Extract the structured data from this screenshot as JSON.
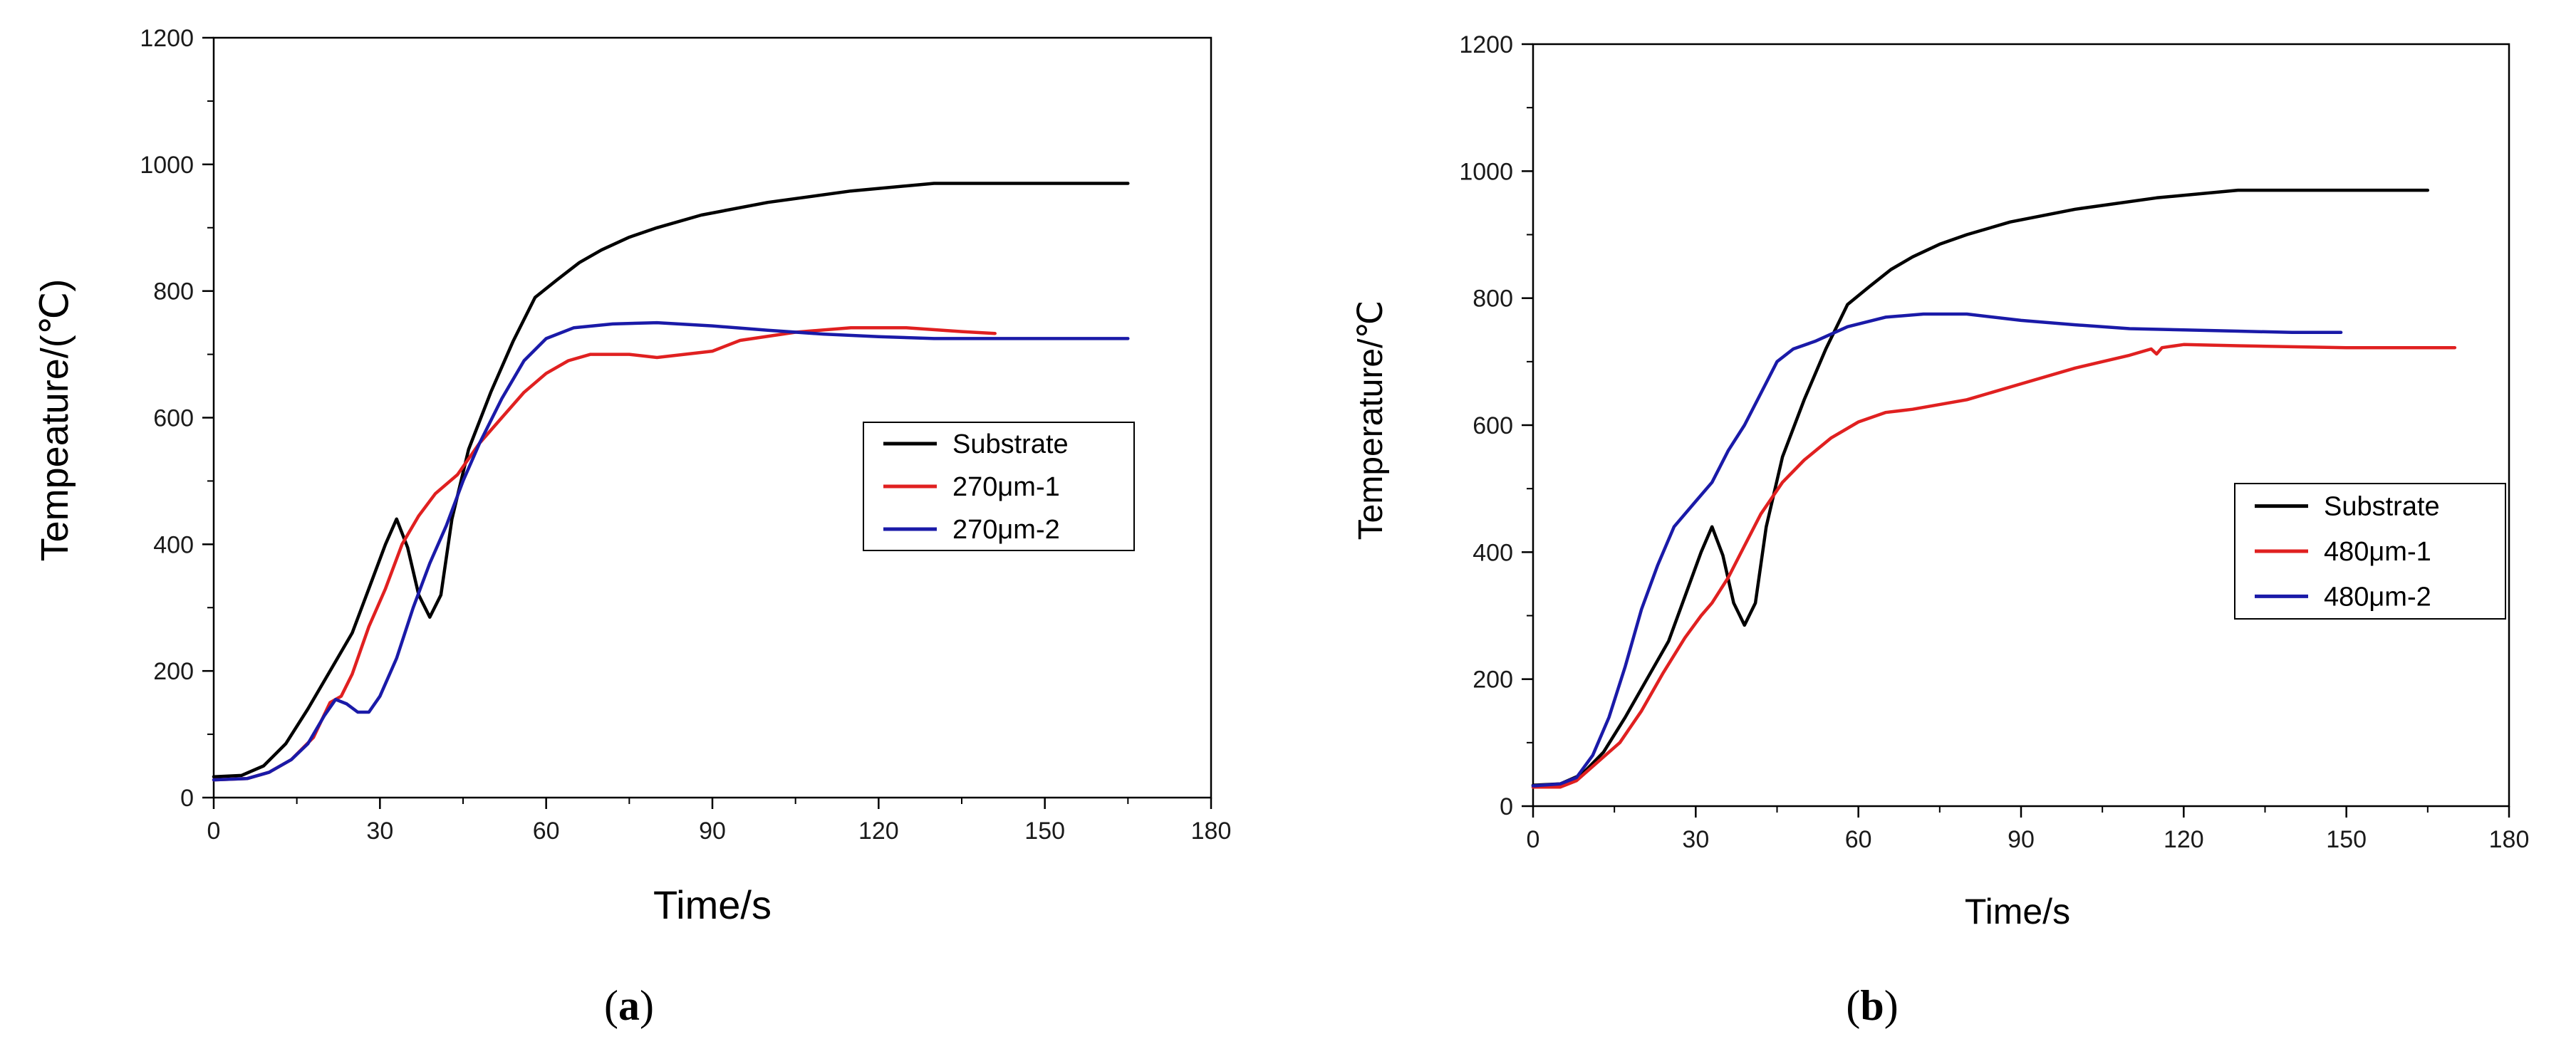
{
  "chart_data": [
    {
      "id": "a",
      "type": "line",
      "caption_letter": "a",
      "caption_open": "(",
      "caption_close": ")",
      "xlabel": "Time/s",
      "ylabel": "Tempeature/(℃)",
      "xlim": [
        0,
        180
      ],
      "ylim": [
        0,
        1200
      ],
      "xticks": [
        "0",
        "30",
        "60",
        "90",
        "120",
        "150",
        "180"
      ],
      "yticks": [
        "0",
        "200",
        "400",
        "600",
        "800",
        "1000",
        "1200"
      ],
      "grid": false,
      "legend_position": "center-right",
      "series": [
        {
          "name": "Substrate",
          "color": "#000000",
          "points": [
            [
              0,
              33
            ],
            [
              5,
              35
            ],
            [
              9,
              50
            ],
            [
              13,
              85
            ],
            [
              17,
              140
            ],
            [
              21,
              200
            ],
            [
              25,
              260
            ],
            [
              28,
              330
            ],
            [
              31,
              400
            ],
            [
              33,
              440
            ],
            [
              35,
              395
            ],
            [
              37,
              320
            ],
            [
              39,
              285
            ],
            [
              41,
              320
            ],
            [
              43,
              440
            ],
            [
              46,
              550
            ],
            [
              50,
              640
            ],
            [
              54,
              720
            ],
            [
              58,
              790
            ],
            [
              62,
              818
            ],
            [
              66,
              845
            ],
            [
              70,
              865
            ],
            [
              75,
              885
            ],
            [
              80,
              900
            ],
            [
              88,
              920
            ],
            [
              100,
              940
            ],
            [
              115,
              958
            ],
            [
              130,
              970
            ],
            [
              145,
              970
            ],
            [
              165,
              970
            ]
          ]
        },
        {
          "name": "270μm-1",
          "color": "#e02020",
          "points": [
            [
              0,
              28
            ],
            [
              6,
              30
            ],
            [
              10,
              40
            ],
            [
              14,
              60
            ],
            [
              18,
              95
            ],
            [
              21,
              150
            ],
            [
              23,
              160
            ],
            [
              25,
              195
            ],
            [
              28,
              270
            ],
            [
              31,
              330
            ],
            [
              34,
              400
            ],
            [
              37,
              445
            ],
            [
              40,
              480
            ],
            [
              44,
              510
            ],
            [
              48,
              560
            ],
            [
              52,
              600
            ],
            [
              56,
              640
            ],
            [
              60,
              670
            ],
            [
              64,
              690
            ],
            [
              68,
              700
            ],
            [
              75,
              700
            ],
            [
              80,
              695
            ],
            [
              90,
              705
            ],
            [
              95,
              722
            ],
            [
              105,
              735
            ],
            [
              115,
              742
            ],
            [
              125,
              742
            ],
            [
              135,
              736
            ],
            [
              141,
              733
            ]
          ]
        },
        {
          "name": "270μm-2",
          "color": "#1a1aa8",
          "points": [
            [
              0,
              28
            ],
            [
              6,
              30
            ],
            [
              10,
              40
            ],
            [
              14,
              60
            ],
            [
              17,
              85
            ],
            [
              20,
              130
            ],
            [
              22,
              155
            ],
            [
              24,
              148
            ],
            [
              26,
              135
            ],
            [
              28,
              135
            ],
            [
              30,
              160
            ],
            [
              33,
              220
            ],
            [
              36,
              300
            ],
            [
              39,
              370
            ],
            [
              42,
              430
            ],
            [
              45,
              500
            ],
            [
              48,
              560
            ],
            [
              52,
              630
            ],
            [
              56,
              690
            ],
            [
              60,
              725
            ],
            [
              65,
              742
            ],
            [
              72,
              748
            ],
            [
              80,
              750
            ],
            [
              90,
              745
            ],
            [
              100,
              738
            ],
            [
              110,
              732
            ],
            [
              120,
              728
            ],
            [
              130,
              725
            ],
            [
              145,
              725
            ],
            [
              165,
              725
            ]
          ]
        }
      ]
    },
    {
      "id": "b",
      "type": "line",
      "caption_letter": "b",
      "caption_open": "(",
      "caption_close": ")",
      "xlabel": "Time/s",
      "ylabel": "Temperature/℃",
      "xlim": [
        0,
        180
      ],
      "ylim": [
        0,
        1200
      ],
      "xticks": [
        "0",
        "30",
        "60",
        "90",
        "120",
        "150",
        "180"
      ],
      "yticks": [
        "0",
        "200",
        "400",
        "600",
        "800",
        "1000",
        "1200"
      ],
      "grid": false,
      "legend_position": "center-right",
      "series": [
        {
          "name": "Substrate",
          "color": "#000000",
          "points": [
            [
              0,
              33
            ],
            [
              5,
              35
            ],
            [
              9,
              50
            ],
            [
              13,
              85
            ],
            [
              17,
              140
            ],
            [
              21,
              200
            ],
            [
              25,
              260
            ],
            [
              28,
              330
            ],
            [
              31,
              400
            ],
            [
              33,
              440
            ],
            [
              35,
              395
            ],
            [
              37,
              320
            ],
            [
              39,
              285
            ],
            [
              41,
              320
            ],
            [
              43,
              440
            ],
            [
              46,
              550
            ],
            [
              50,
              640
            ],
            [
              54,
              720
            ],
            [
              58,
              790
            ],
            [
              62,
              818
            ],
            [
              66,
              845
            ],
            [
              70,
              865
            ],
            [
              75,
              885
            ],
            [
              80,
              900
            ],
            [
              88,
              920
            ],
            [
              100,
              940
            ],
            [
              115,
              958
            ],
            [
              130,
              970
            ],
            [
              145,
              970
            ],
            [
              165,
              970
            ]
          ]
        },
        {
          "name": "480μm-1",
          "color": "#e02020",
          "points": [
            [
              0,
              30
            ],
            [
              5,
              30
            ],
            [
              8,
              40
            ],
            [
              12,
              70
            ],
            [
              16,
              100
            ],
            [
              20,
              150
            ],
            [
              24,
              210
            ],
            [
              28,
              265
            ],
            [
              31,
              300
            ],
            [
              33,
              320
            ],
            [
              36,
              360
            ],
            [
              39,
              410
            ],
            [
              42,
              460
            ],
            [
              46,
              510
            ],
            [
              50,
              545
            ],
            [
              55,
              580
            ],
            [
              60,
              605
            ],
            [
              65,
              620
            ],
            [
              70,
              625
            ],
            [
              80,
              640
            ],
            [
              90,
              665
            ],
            [
              100,
              690
            ],
            [
              110,
              710
            ],
            [
              114,
              720
            ],
            [
              115,
              712
            ],
            [
              116,
              722
            ],
            [
              120,
              727
            ],
            [
              130,
              725
            ],
            [
              150,
              722
            ],
            [
              170,
              722
            ]
          ]
        },
        {
          "name": "480μm-2",
          "color": "#1a1aa8",
          "points": [
            [
              0,
              32
            ],
            [
              5,
              35
            ],
            [
              8,
              45
            ],
            [
              11,
              80
            ],
            [
              14,
              140
            ],
            [
              17,
              220
            ],
            [
              20,
              310
            ],
            [
              23,
              380
            ],
            [
              26,
              440
            ],
            [
              30,
              480
            ],
            [
              33,
              510
            ],
            [
              36,
              560
            ],
            [
              39,
              600
            ],
            [
              42,
              650
            ],
            [
              45,
              700
            ],
            [
              48,
              720
            ],
            [
              52,
              732
            ],
            [
              58,
              755
            ],
            [
              65,
              770
            ],
            [
              72,
              775
            ],
            [
              80,
              775
            ],
            [
              90,
              765
            ],
            [
              100,
              758
            ],
            [
              110,
              752
            ],
            [
              120,
              750
            ],
            [
              130,
              748
            ],
            [
              140,
              746
            ],
            [
              149,
              746
            ]
          ]
        }
      ]
    }
  ]
}
